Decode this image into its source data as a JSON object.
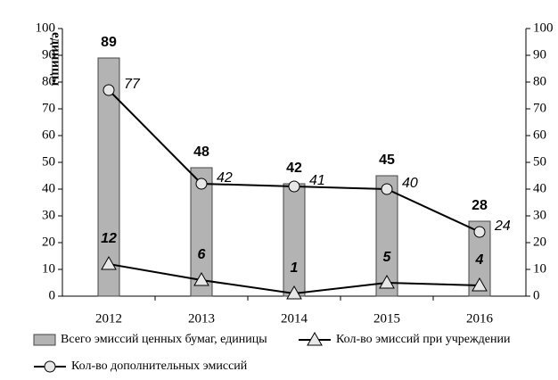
{
  "chart_data": {
    "type": "bar",
    "y_label": "единицы",
    "categories": [
      "2012",
      "2013",
      "2014",
      "2015",
      "2016"
    ],
    "series": [
      {
        "name": "Всего эмиссий ценных бумаг, единицы",
        "type": "bar",
        "color": "#b3b3b3",
        "values": [
          89,
          48,
          42,
          45,
          28
        ]
      },
      {
        "name": "Кол-во эмиссий при учреждении",
        "type": "line",
        "marker": "triangle",
        "color": "#000000",
        "values": [
          12,
          6,
          1,
          5,
          4
        ]
      },
      {
        "name": "Кол-во дополнительных эмиссий",
        "type": "line",
        "marker": "circle",
        "color": "#000000",
        "values": [
          77,
          42,
          41,
          40,
          24
        ]
      }
    ],
    "ylim": [
      0,
      100
    ],
    "yticks": [
      0,
      10,
      20,
      30,
      40,
      50,
      60,
      70,
      80,
      90,
      100
    ],
    "y2lim": [
      0,
      100
    ],
    "y2ticks": [
      0,
      10,
      20,
      30,
      40,
      50,
      60,
      70,
      80,
      90,
      100
    ],
    "grid": false,
    "legend": "bottom"
  }
}
